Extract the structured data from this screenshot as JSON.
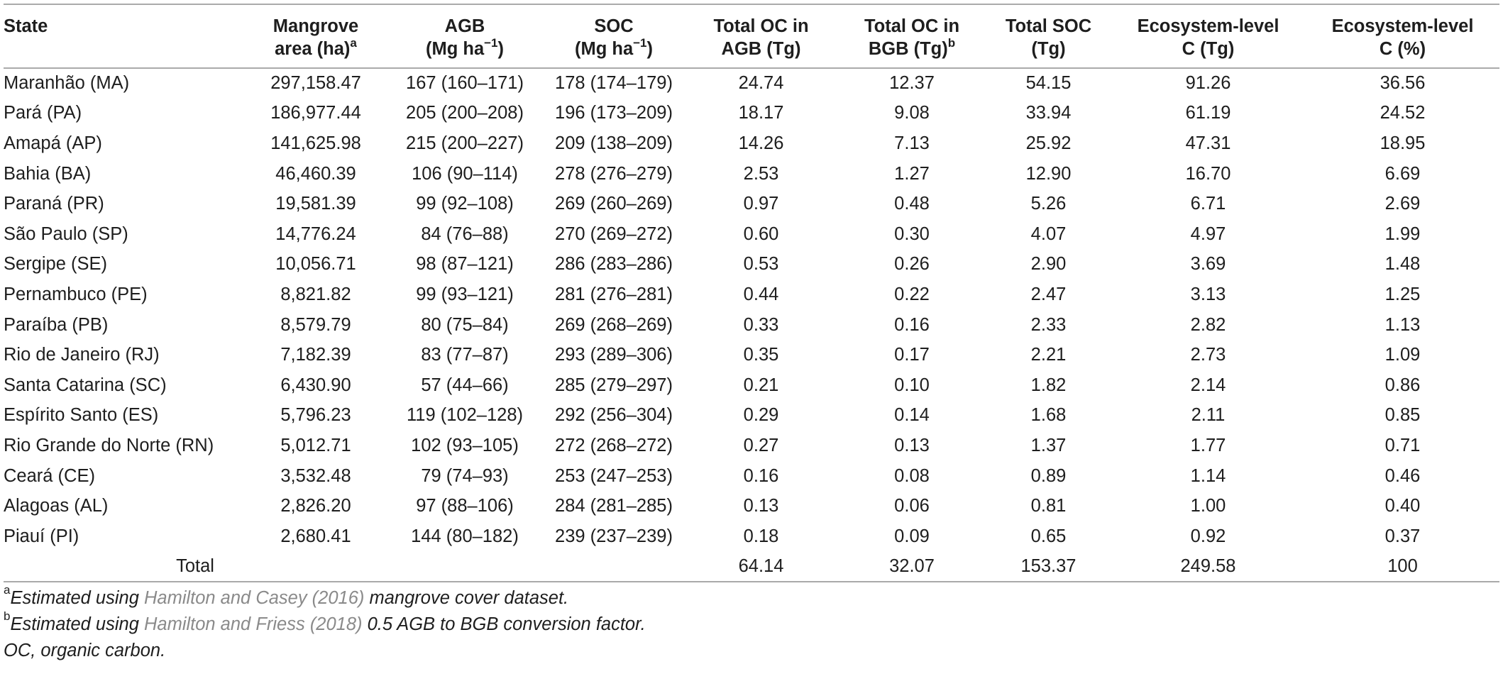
{
  "table": {
    "headers": [
      {
        "line1": "State",
        "line2": "",
        "sup": ""
      },
      {
        "line1": "Mangrove",
        "line2": "area (ha)",
        "sup": "a"
      },
      {
        "line1": "AGB",
        "line2": "(Mg ha−1)",
        "sup": ""
      },
      {
        "line1": "SOC",
        "line2": "(Mg ha−1)",
        "sup": ""
      },
      {
        "line1": "Total OC in",
        "line2": "AGB (Tg)",
        "sup": ""
      },
      {
        "line1": "Total OC in",
        "line2": "BGB (Tg)",
        "sup": "b"
      },
      {
        "line1": "Total SOC",
        "line2": "(Tg)",
        "sup": ""
      },
      {
        "line1": "Ecosystem-level",
        "line2": "C (Tg)",
        "sup": ""
      },
      {
        "line1": "Ecosystem-level",
        "line2": "C (%)",
        "sup": ""
      }
    ],
    "rows": [
      [
        "Maranhão (MA)",
        "297,158.47",
        "167 (160–171)",
        "178 (174–179)",
        "24.74",
        "12.37",
        "54.15",
        "91.26",
        "36.56"
      ],
      [
        "Pará (PA)",
        "186,977.44",
        "205 (200–208)",
        "196 (173–209)",
        "18.17",
        "9.08",
        "33.94",
        "61.19",
        "24.52"
      ],
      [
        "Amapá (AP)",
        "141,625.98",
        "215 (200–227)",
        "209 (138–209)",
        "14.26",
        "7.13",
        "25.92",
        "47.31",
        "18.95"
      ],
      [
        "Bahia (BA)",
        "46,460.39",
        "106 (90–114)",
        "278 (276–279)",
        "2.53",
        "1.27",
        "12.90",
        "16.70",
        "6.69"
      ],
      [
        "Paraná (PR)",
        "19,581.39",
        "99 (92–108)",
        "269 (260–269)",
        "0.97",
        "0.48",
        "5.26",
        "6.71",
        "2.69"
      ],
      [
        "São Paulo (SP)",
        "14,776.24",
        "84 (76–88)",
        "270 (269–272)",
        "0.60",
        "0.30",
        "4.07",
        "4.97",
        "1.99"
      ],
      [
        "Sergipe (SE)",
        "10,056.71",
        "98 (87–121)",
        "286 (283–286)",
        "0.53",
        "0.26",
        "2.90",
        "3.69",
        "1.48"
      ],
      [
        "Pernambuco (PE)",
        "8,821.82",
        "99 (93–121)",
        "281 (276–281)",
        "0.44",
        "0.22",
        "2.47",
        "3.13",
        "1.25"
      ],
      [
        "Paraíba (PB)",
        "8,579.79",
        "80 (75–84)",
        "269 (268–269)",
        "0.33",
        "0.16",
        "2.33",
        "2.82",
        "1.13"
      ],
      [
        "Rio de Janeiro (RJ)",
        "7,182.39",
        "83 (77–87)",
        "293 (289–306)",
        "0.35",
        "0.17",
        "2.21",
        "2.73",
        "1.09"
      ],
      [
        "Santa Catarina (SC)",
        "6,430.90",
        "57 (44–66)",
        "285 (279–297)",
        "0.21",
        "0.10",
        "1.82",
        "2.14",
        "0.86"
      ],
      [
        "Espírito Santo (ES)",
        "5,796.23",
        "119 (102–128)",
        "292 (256–304)",
        "0.29",
        "0.14",
        "1.68",
        "2.11",
        "0.85"
      ],
      [
        "Rio Grande do Norte (RN)",
        "5,012.71",
        "102 (93–105)",
        "272 (268–272)",
        "0.27",
        "0.13",
        "1.37",
        "1.77",
        "0.71"
      ],
      [
        "Ceará (CE)",
        "3,532.48",
        "79 (74–93)",
        "253 (247–253)",
        "0.16",
        "0.08",
        "0.89",
        "1.14",
        "0.46"
      ],
      [
        "Alagoas (AL)",
        "2,826.20",
        "97 (88–106)",
        "284 (281–285)",
        "0.13",
        "0.06",
        "0.81",
        "1.00",
        "0.40"
      ],
      [
        "Piauí (PI)",
        "2,680.41",
        "144 (80–182)",
        "239 (237–239)",
        "0.18",
        "0.09",
        "0.65",
        "0.92",
        "0.37"
      ]
    ],
    "total": {
      "label": "Total",
      "values": [
        "64.14",
        "32.07",
        "153.37",
        "249.58",
        "100"
      ]
    }
  },
  "footnotes": [
    {
      "marker": "a",
      "prefix": "Estimated using ",
      "ref": "Hamilton and Casey (2016)",
      "suffix": " mangrove cover dataset."
    },
    {
      "marker": "b",
      "prefix": "Estimated using ",
      "ref": "Hamilton and Friess (2018)",
      "suffix": " 0.5 AGB to BGB conversion factor."
    }
  ],
  "abbreviation": "OC, organic carbon."
}
